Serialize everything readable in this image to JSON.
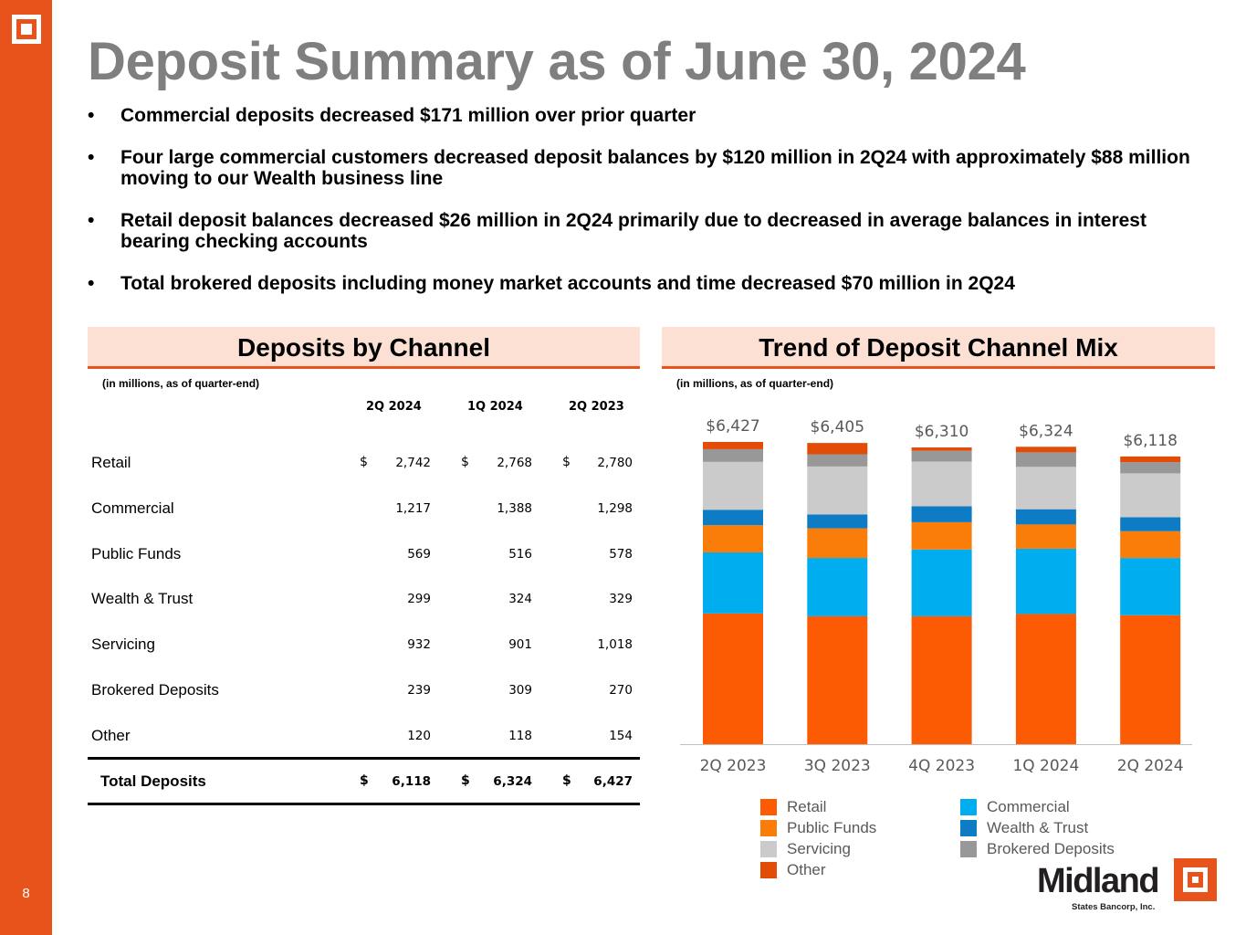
{
  "page": {
    "number": "8",
    "title": "Deposit Summary as of June 30, 2024"
  },
  "bullets": [
    "Commercial deposits decreased $171 million over prior quarter",
    "Four large commercial customers decreased deposit balances by $120 million in 2Q24 with approximately $88 million moving to our Wealth business line",
    "Retail deposit balances decreased $26 million in 2Q24 primarily due to decreased in average balances in interest bearing checking accounts",
    "Total brokered deposits including money market accounts and time decreased $70 million in 2Q24"
  ],
  "table_panel": {
    "header": "Deposits by Channel",
    "note": "(in millions, as of quarter-end)",
    "columns": [
      "2Q 2024",
      "1Q 2024",
      "2Q 2023"
    ],
    "currency": "$",
    "rows": [
      {
        "label": "Retail",
        "values": [
          "2,742",
          "2,768",
          "2,780"
        ]
      },
      {
        "label": "Commercial",
        "values": [
          "1,217",
          "1,388",
          "1,298"
        ]
      },
      {
        "label": "Public Funds",
        "values": [
          "569",
          "516",
          "578"
        ]
      },
      {
        "label": "Wealth & Trust",
        "values": [
          "299",
          "324",
          "329"
        ]
      },
      {
        "label": "Servicing",
        "values": [
          "932",
          "901",
          "1,018"
        ]
      },
      {
        "label": "Brokered Deposits",
        "values": [
          "239",
          "309",
          "270"
        ]
      },
      {
        "label": "Other",
        "values": [
          "120",
          "118",
          "154"
        ]
      }
    ],
    "total": {
      "label": "Total Deposits",
      "values": [
        "6,118",
        "6,324",
        "6,427"
      ]
    }
  },
  "chart_panel": {
    "header": "Trend of Deposit Channel Mix",
    "note": "(in millions, as of quarter-end)"
  },
  "chart_data": {
    "type": "bar",
    "stacked": true,
    "title": "Trend of Deposit Channel Mix",
    "categories": [
      "2Q 2023",
      "3Q 2023",
      "4Q 2023",
      "1Q 2024",
      "2Q 2024"
    ],
    "totals": [
      "$6,427",
      "$6,405",
      "$6,310",
      "$6,324",
      "$6,118"
    ],
    "total_values": [
      6427,
      6405,
      6310,
      6324,
      6118
    ],
    "ylim": [
      0,
      6800
    ],
    "grid": false,
    "legend_position": "bottom",
    "series": [
      {
        "name": "Retail",
        "color": "#fc5a03",
        "values": [
          2780,
          2720,
          2720,
          2768,
          2742
        ]
      },
      {
        "name": "Commercial",
        "color": "#00adef",
        "values": [
          1298,
          1240,
          1420,
          1388,
          1217
        ]
      },
      {
        "name": "Public Funds",
        "color": "#fa7c09",
        "values": [
          578,
          630,
          580,
          516,
          569
        ]
      },
      {
        "name": "Wealth & Trust",
        "color": "#0e7cc5",
        "values": [
          329,
          295,
          340,
          324,
          299
        ]
      },
      {
        "name": "Servicing",
        "color": "#cbcbcb",
        "values": [
          1018,
          1020,
          950,
          901,
          932
        ]
      },
      {
        "name": "Brokered Deposits",
        "color": "#989898",
        "values": [
          270,
          260,
          230,
          309,
          239
        ]
      },
      {
        "name": "Other",
        "color": "#e24c06",
        "values": [
          154,
          240,
          70,
          118,
          120
        ]
      }
    ]
  },
  "brand": {
    "name": "Midland",
    "subtitle": "States Bancorp, Inc."
  }
}
